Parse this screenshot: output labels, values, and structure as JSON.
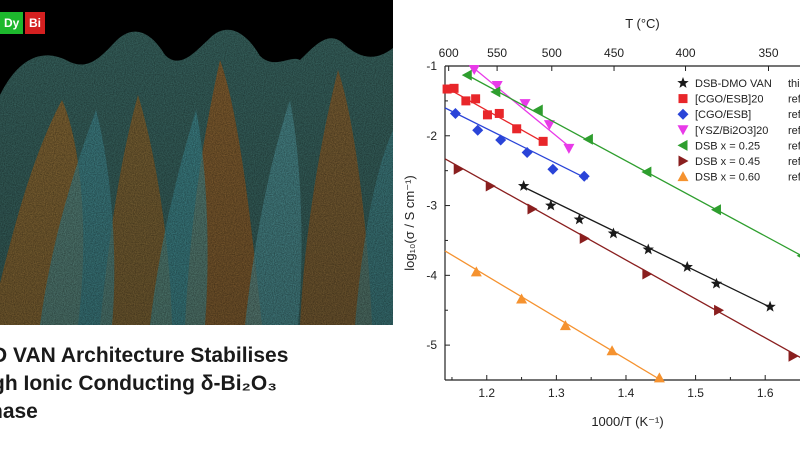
{
  "image_panel": {
    "legend": [
      {
        "label": "Dy",
        "color": "#1db82d"
      },
      {
        "label": "Bi",
        "color": "#d42020"
      }
    ]
  },
  "headline": {
    "line1": "D VAN Architecture Stabilises",
    "line2": "gh Ionic Conducting δ-Bi₂O₃",
    "line3": "hase"
  },
  "chart_data": {
    "type": "scatter",
    "xlabel": "1000/T (K⁻¹)",
    "ylabel": "log₁₀(σ / S cm⁻¹)",
    "top_axis_label": "T (°C)",
    "xlim": [
      1.14,
      1.65
    ],
    "ylim": [
      -5.5,
      -1.0
    ],
    "xticks": [
      1.2,
      1.3,
      1.4,
      1.5,
      1.6
    ],
    "yticks": [
      -1,
      -2,
      -3,
      -4,
      -5
    ],
    "top_ticks_celsius": [
      600,
      550,
      500,
      450,
      400,
      350
    ],
    "legend_position": "top-right",
    "series": [
      {
        "name": "DSB-DMO VAN",
        "note": "this",
        "marker": "star",
        "color": "#1a1a1a",
        "x": [
          1.253,
          1.292,
          1.333,
          1.382,
          1.432,
          1.488,
          1.53,
          1.607
        ],
        "y": [
          -2.72,
          -3.0,
          -3.2,
          -3.4,
          -3.63,
          -3.88,
          -4.12,
          -4.45
        ],
        "fit": [
          [
            1.25,
            -2.72
          ],
          [
            1.61,
            -4.47
          ]
        ]
      },
      {
        "name": "[CGO/ESB]20",
        "note": "ref",
        "marker": "square",
        "color": "#e8262a",
        "x": [
          1.143,
          1.153,
          1.17,
          1.184,
          1.201,
          1.218,
          1.243,
          1.281
        ],
        "y": [
          -1.33,
          -1.32,
          -1.5,
          -1.47,
          -1.7,
          -1.68,
          -1.9,
          -2.08
        ],
        "fit": [
          [
            1.14,
            -1.3
          ],
          [
            1.283,
            -2.1
          ]
        ]
      },
      {
        "name": "[CGO/ESB]",
        "note": "ref",
        "marker": "diamond",
        "color": "#2a44d8",
        "x": [
          1.155,
          1.187,
          1.22,
          1.258,
          1.295,
          1.34
        ],
        "y": [
          -1.68,
          -1.92,
          -2.06,
          -2.24,
          -2.48,
          -2.58
        ],
        "fit": [
          [
            1.14,
            -1.6
          ],
          [
            1.345,
            -2.62
          ]
        ]
      },
      {
        "name": "[YSZ/Bi2O3]20",
        "note": "ref",
        "marker": "triangle-down",
        "color": "#e83ae8",
        "x": [
          1.182,
          1.215,
          1.255,
          1.29,
          1.318
        ],
        "y": [
          -1.05,
          -1.28,
          -1.54,
          -1.84,
          -2.18
        ],
        "fit": [
          [
            1.18,
            -1.02
          ],
          [
            1.318,
            -2.15
          ]
        ]
      },
      {
        "name": "DSB x = 0.25",
        "note": "ref",
        "marker": "triangle-left",
        "color": "#2e9e2e",
        "x": [
          1.172,
          1.213,
          1.274,
          1.346,
          1.43,
          1.53,
          1.653
        ],
        "y": [
          -1.13,
          -1.37,
          -1.63,
          -2.05,
          -2.52,
          -3.06,
          -3.72
        ],
        "fit": [
          [
            1.17,
            -1.12
          ],
          [
            1.66,
            -3.76
          ]
        ]
      },
      {
        "name": "DSB x = 0.45",
        "note": "ref",
        "marker": "triangle-right",
        "color": "#8a1f1f",
        "x": [
          1.159,
          1.205,
          1.265,
          1.34,
          1.43,
          1.533,
          1.64
        ],
        "y": [
          -2.48,
          -2.72,
          -3.05,
          -3.47,
          -3.98,
          -4.5,
          -5.16
        ],
        "fit": [
          [
            1.14,
            -2.33
          ],
          [
            1.66,
            -5.23
          ]
        ]
      },
      {
        "name": "DSB x = 0.60",
        "note": "ref",
        "marker": "triangle-up",
        "color": "#f5922f",
        "x": [
          1.185,
          1.25,
          1.313,
          1.38,
          1.448
        ],
        "y": [
          -3.95,
          -4.34,
          -4.72,
          -5.08,
          -5.47
        ],
        "fit": [
          [
            1.14,
            -3.65
          ],
          [
            1.45,
            -5.5
          ]
        ]
      }
    ]
  }
}
